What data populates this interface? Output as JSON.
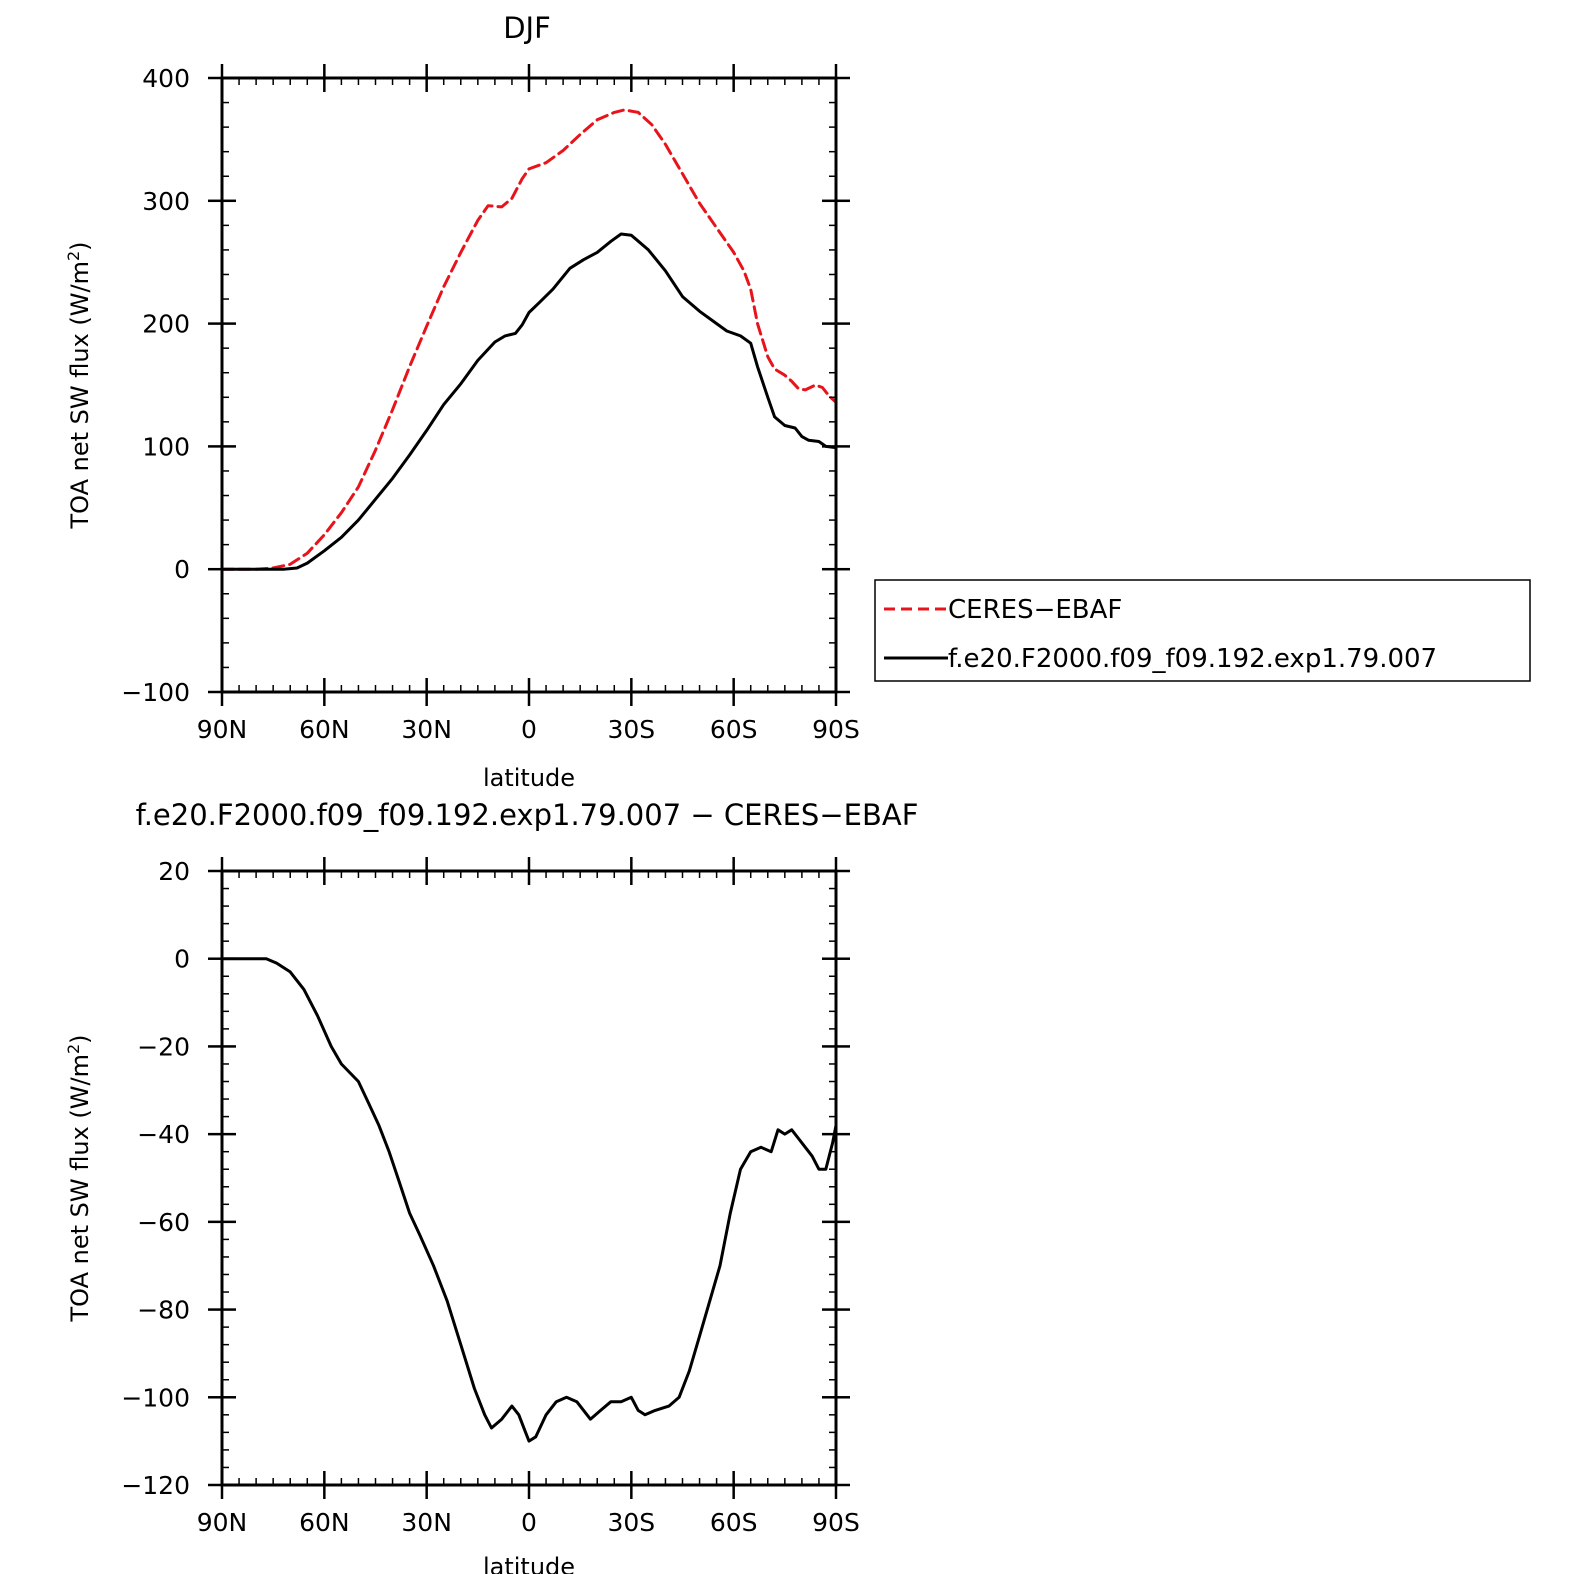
{
  "chart_data": [
    {
      "type": "line",
      "title": "DJF",
      "xlabel": "latitude",
      "ylabel": "TOA net SW flux (W/m²)",
      "ylabel_main": "TOA net SW flux (W/m",
      "ylabel_sup": "2",
      "ylabel_tail": ")",
      "xlim": [
        90,
        -90
      ],
      "ylim": [
        -100,
        400
      ],
      "x_ticks": [
        90,
        60,
        30,
        0,
        -30,
        -60,
        -90
      ],
      "x_tick_labels": [
        "90N",
        "60N",
        "30N",
        "0",
        "30S",
        "60S",
        "90S"
      ],
      "y_ticks": [
        -100,
        0,
        100,
        200,
        300,
        400
      ],
      "y_tick_labels": [
        "−100",
        "0",
        "100",
        "200",
        "300",
        "400"
      ],
      "legend_position": "right",
      "series": [
        {
          "name": "CERES-EBAF",
          "color": "#e8141b",
          "dash": "dashed",
          "points": [
            [
              90,
              0
            ],
            [
              85,
              0
            ],
            [
              80,
              0
            ],
            [
              75,
              1
            ],
            [
              70,
              4
            ],
            [
              65,
              13
            ],
            [
              60,
              28
            ],
            [
              55,
              46
            ],
            [
              50,
              67
            ],
            [
              45,
              97
            ],
            [
              40,
              130
            ],
            [
              35,
              165
            ],
            [
              30,
              198
            ],
            [
              25,
              230
            ],
            [
              20,
              258
            ],
            [
              15,
              284
            ],
            [
              12,
              296
            ],
            [
              8,
              295
            ],
            [
              5,
              302
            ],
            [
              2,
              318
            ],
            [
              0,
              326
            ],
            [
              -5,
              331
            ],
            [
              -10,
              341
            ],
            [
              -15,
              354
            ],
            [
              -20,
              366
            ],
            [
              -25,
              372
            ],
            [
              -28,
              374
            ],
            [
              -32,
              372
            ],
            [
              -36,
              362
            ],
            [
              -40,
              346
            ],
            [
              -45,
              322
            ],
            [
              -50,
              298
            ],
            [
              -55,
              278
            ],
            [
              -60,
              258
            ],
            [
              -63,
              243
            ],
            [
              -65,
              228
            ],
            [
              -67,
              200
            ],
            [
              -70,
              173
            ],
            [
              -72,
              163
            ],
            [
              -75,
              158
            ],
            [
              -77,
              153
            ],
            [
              -79,
              147
            ],
            [
              -81,
              146
            ],
            [
              -84,
              150
            ],
            [
              -86,
              148
            ],
            [
              -88,
              141
            ],
            [
              -90,
              136
            ]
          ]
        },
        {
          "name": "f.e20.F2000.f09_f09.192.exp1.79.007",
          "color": "#000000",
          "dash": "solid",
          "points": [
            [
              90,
              0
            ],
            [
              80,
              0
            ],
            [
              72,
              0
            ],
            [
              68,
              1
            ],
            [
              65,
              5
            ],
            [
              60,
              15
            ],
            [
              55,
              26
            ],
            [
              50,
              40
            ],
            [
              45,
              57
            ],
            [
              40,
              74
            ],
            [
              35,
              93
            ],
            [
              30,
              113
            ],
            [
              25,
              134
            ],
            [
              20,
              151
            ],
            [
              15,
              170
            ],
            [
              10,
              185
            ],
            [
              7,
              190
            ],
            [
              4,
              192
            ],
            [
              2,
              199
            ],
            [
              0,
              209
            ],
            [
              -3,
              217
            ],
            [
              -7,
              228
            ],
            [
              -12,
              245
            ],
            [
              -16,
              252
            ],
            [
              -20,
              258
            ],
            [
              -24,
              267
            ],
            [
              -27,
              273
            ],
            [
              -30,
              272
            ],
            [
              -35,
              260
            ],
            [
              -40,
              243
            ],
            [
              -45,
              222
            ],
            [
              -50,
              210
            ],
            [
              -55,
              200
            ],
            [
              -58,
              194
            ],
            [
              -62,
              190
            ],
            [
              -65,
              184
            ],
            [
              -67,
              165
            ],
            [
              -70,
              140
            ],
            [
              -72,
              124
            ],
            [
              -75,
              117
            ],
            [
              -78,
              115
            ],
            [
              -80,
              108
            ],
            [
              -82,
              105
            ],
            [
              -85,
              104
            ],
            [
              -87,
              100
            ],
            [
              -90,
              99
            ]
          ]
        }
      ]
    },
    {
      "type": "line",
      "title": "f.e20.F2000.f09_f09.192.exp1.79.007 − CERES−EBAF",
      "xlabel": "latitude",
      "ylabel": "TOA net SW flux (W/m²)",
      "ylabel_main": "TOA net SW flux (W/m",
      "ylabel_sup": "2",
      "ylabel_tail": ")",
      "xlim": [
        90,
        -90
      ],
      "ylim": [
        -120,
        20
      ],
      "x_ticks": [
        90,
        60,
        30,
        0,
        -30,
        -60,
        -90
      ],
      "x_tick_labels": [
        "90N",
        "60N",
        "30N",
        "0",
        "30S",
        "60S",
        "90S"
      ],
      "y_ticks": [
        -120,
        -100,
        -80,
        -60,
        -40,
        -20,
        0,
        20
      ],
      "y_tick_labels": [
        "−120",
        "−100",
        "−80",
        "−60",
        "−40",
        "−20",
        "0",
        "20"
      ],
      "series": [
        {
          "color": "#000000",
          "dash": "solid",
          "points": [
            [
              90,
              0
            ],
            [
              80,
              0
            ],
            [
              77,
              0
            ],
            [
              74,
              -1
            ],
            [
              70,
              -3
            ],
            [
              66,
              -7
            ],
            [
              62,
              -13
            ],
            [
              58,
              -20
            ],
            [
              55,
              -24
            ],
            [
              50,
              -28
            ],
            [
              47,
              -33
            ],
            [
              44,
              -38
            ],
            [
              41,
              -44
            ],
            [
              38,
              -51
            ],
            [
              35,
              -58
            ],
            [
              32,
              -63
            ],
            [
              28,
              -70
            ],
            [
              24,
              -78
            ],
            [
              20,
              -88
            ],
            [
              16,
              -98
            ],
            [
              13,
              -104
            ],
            [
              11,
              -107
            ],
            [
              8,
              -105
            ],
            [
              5,
              -102
            ],
            [
              3,
              -104
            ],
            [
              1,
              -108
            ],
            [
              0,
              -110
            ],
            [
              -2,
              -109
            ],
            [
              -5,
              -104
            ],
            [
              -8,
              -101
            ],
            [
              -11,
              -100
            ],
            [
              -14,
              -101
            ],
            [
              -16,
              -103
            ],
            [
              -18,
              -105
            ],
            [
              -21,
              -103
            ],
            [
              -24,
              -101
            ],
            [
              -27,
              -101
            ],
            [
              -30,
              -100
            ],
            [
              -32,
              -103
            ],
            [
              -34,
              -104
            ],
            [
              -37,
              -103
            ],
            [
              -41,
              -102
            ],
            [
              -44,
              -100
            ],
            [
              -47,
              -94
            ],
            [
              -50,
              -86
            ],
            [
              -53,
              -78
            ],
            [
              -56,
              -70
            ],
            [
              -59,
              -58
            ],
            [
              -62,
              -48
            ],
            [
              -65,
              -44
            ],
            [
              -68,
              -43
            ],
            [
              -71,
              -44
            ],
            [
              -73,
              -39
            ],
            [
              -75,
              -40
            ],
            [
              -77,
              -39
            ],
            [
              -79,
              -41
            ],
            [
              -81,
              -43
            ],
            [
              -83,
              -45
            ],
            [
              -85,
              -48
            ],
            [
              -87,
              -48
            ],
            [
              -89,
              -42
            ],
            [
              -90,
              -38
            ]
          ]
        }
      ]
    }
  ],
  "legend": {
    "items": [
      {
        "label": "CERES−EBAF"
      },
      {
        "label": "f.e20.F2000.f09_f09.192.exp1.79.007"
      }
    ]
  }
}
